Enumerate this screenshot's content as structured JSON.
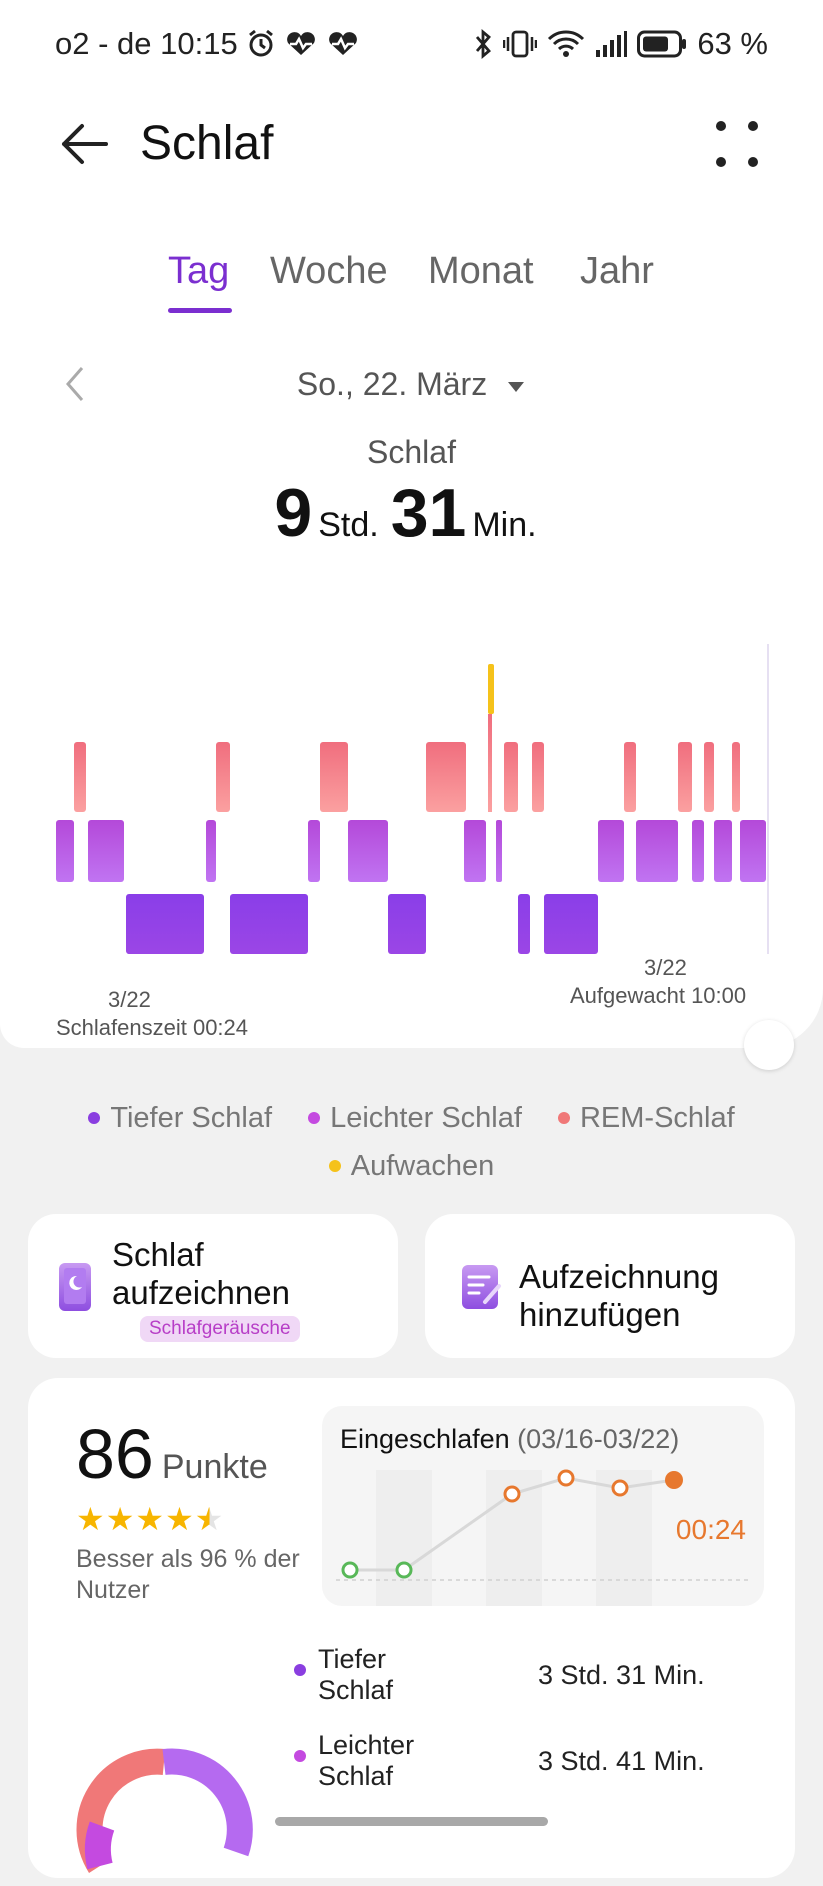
{
  "status_bar": {
    "carrier_time": "o2 - de 10:15",
    "battery": "63 %"
  },
  "header": {
    "title": "Schlaf"
  },
  "tabs": [
    {
      "label": "Tag"
    },
    {
      "label": "Woche"
    },
    {
      "label": "Monat"
    },
    {
      "label": "Jahr"
    }
  ],
  "date": {
    "label": "So., 22. März"
  },
  "summary": {
    "label": "Schlaf",
    "hours": "9",
    "hours_unit": "Std.",
    "minutes": "31",
    "minutes_unit": "Min."
  },
  "chart_annotations": {
    "start_date": "3/22",
    "start_label": "Schlafenszeit 00:24",
    "end_date": "3/22",
    "end_label": "Aufgewacht 10:00"
  },
  "legend": [
    {
      "label": "Tiefer Schlaf",
      "color": "#8a3ee0"
    },
    {
      "label": "Leichter Schlaf",
      "color": "#c44ae0"
    },
    {
      "label": "REM-Schlaf",
      "color": "#f07878"
    },
    {
      "label": "Aufwachen",
      "color": "#f5c21a"
    }
  ],
  "cards": {
    "record": {
      "title": "Schlaf aufzeichnen",
      "badge": "Schlafgeräusche"
    },
    "add": {
      "title": "Aufzeichnung hinzufügen"
    }
  },
  "score": {
    "value": "86",
    "unit": "Punkte",
    "rating": 4.5,
    "comparison": "Besser als 96 % der Nutzer"
  },
  "trend": {
    "title": "Eingeschlafen",
    "range": "(03/16-03/22)",
    "latest": "00:24"
  },
  "stats": [
    {
      "label": "Tiefer Schlaf",
      "value": "3 Std. 31 Min.",
      "color": "#8a3ee0"
    },
    {
      "label": "Leichter Schlaf",
      "value": "3 Std. 41 Min.",
      "color": "#c44ae0"
    }
  ]
}
